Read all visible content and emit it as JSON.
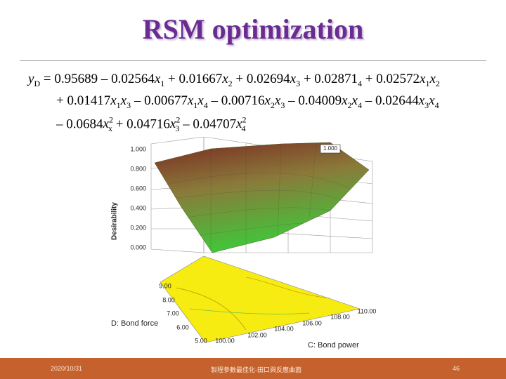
{
  "header": {
    "title": "RSM optimization"
  },
  "equation": {
    "lines": [
      [
        {
          "base": "y",
          "sub": "D"
        },
        " = 0.95689 – 0.02564",
        {
          "base": "x",
          "sub": "1"
        },
        " + 0.01667",
        {
          "base": "x",
          "sub": "2"
        },
        " + 0.02694",
        {
          "base": "x",
          "sub": "3"
        },
        " + 0.02871",
        {
          "base": "",
          "sub": "4"
        },
        " + 0.02572",
        {
          "base": "x",
          "sub": "1"
        },
        {
          "base": "x",
          "sub": "2"
        }
      ],
      [
        "+ 0.01417",
        {
          "base": "x",
          "sub": "1"
        },
        {
          "base": "x",
          "sub": "3"
        },
        " – 0.00677",
        {
          "base": "x",
          "sub": "1"
        },
        {
          "base": "x",
          "sub": "4"
        },
        " – 0.00716",
        {
          "base": "x",
          "sub": "2"
        },
        {
          "base": "x",
          "sub": "3"
        },
        " – 0.04009",
        {
          "base": "x",
          "sub": "2"
        },
        {
          "base": "x",
          "sub": "4"
        },
        " – 0.02644",
        {
          "base": "x",
          "sub": "3"
        },
        {
          "base": "x",
          "sub": "4"
        }
      ],
      [
        "– 0.0684",
        {
          "base": "x",
          "sub": "x",
          "sup": "2"
        },
        " + 0.04716",
        {
          "base": "x",
          "sub": "3",
          "sup": "2"
        },
        " – 0.04707",
        {
          "base": "x",
          "sub": "4",
          "sup": "2"
        }
      ]
    ]
  },
  "figure": {
    "z_label": "Desirability",
    "z_ticks": [
      "1.000",
      "0.800",
      "0.600",
      "0.400",
      "0.200",
      "0.000"
    ],
    "max_label": "1.000",
    "d_label": "D: Bond force",
    "d_ticks": [
      "9.00",
      "8.00",
      "7.00",
      "6.00",
      "5.00"
    ],
    "c_label": "C: Bond power",
    "c_ticks": [
      "100.00",
      "102.00",
      "104.00",
      "106.00",
      "108.00",
      "110.00"
    ]
  },
  "footer": {
    "date": "2020/10/31",
    "text": "製程參數最佳化-田口與反應曲面",
    "page": "46"
  }
}
